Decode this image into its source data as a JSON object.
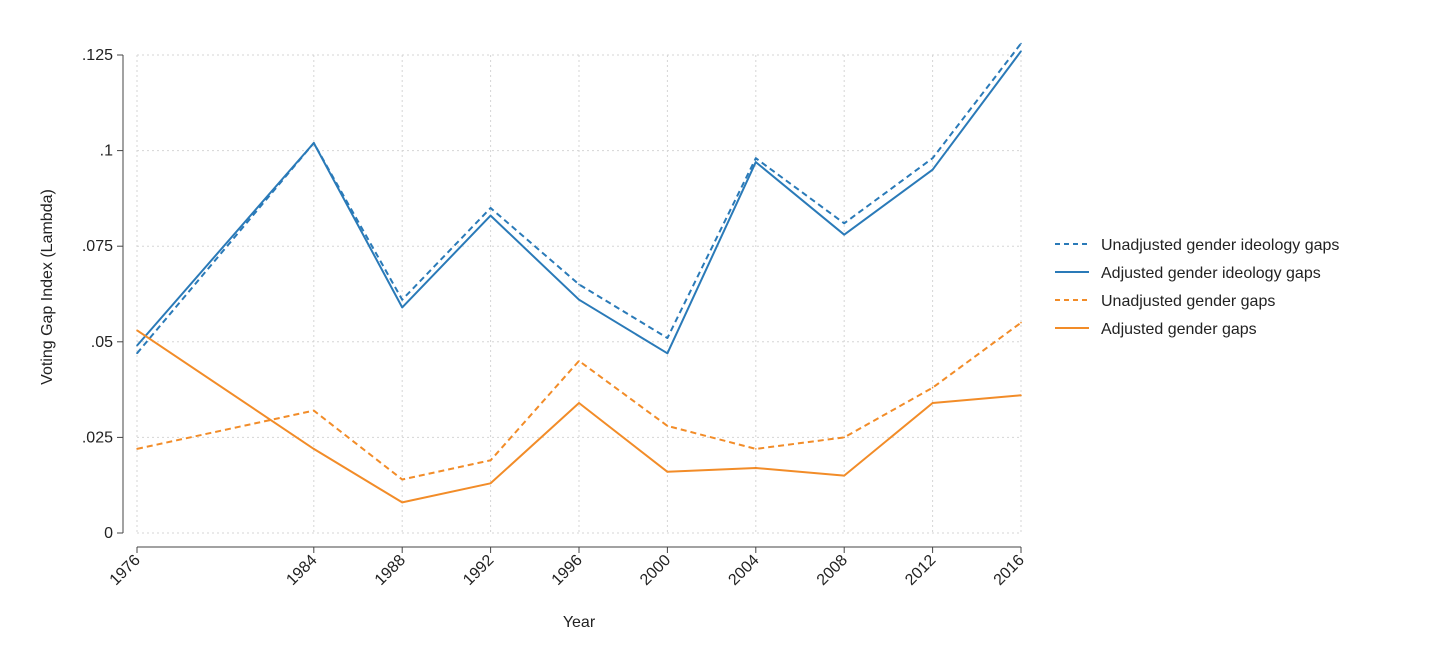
{
  "chart_data": {
    "type": "line",
    "title": "",
    "xlabel": "Year",
    "ylabel": "Voting Gap Index (Lambda)",
    "x": [
      1976,
      1984,
      1988,
      1992,
      1996,
      2000,
      2004,
      2008,
      2012,
      2016
    ],
    "xlim": [
      1976,
      2016
    ],
    "ylim": [
      0,
      0.125
    ],
    "yticks": [
      {
        "value": 0,
        "label": "0"
      },
      {
        "value": 0.025,
        "label": ".025"
      },
      {
        "value": 0.05,
        "label": ".05"
      },
      {
        "value": 0.075,
        "label": ".075"
      },
      {
        "value": 0.1,
        "label": ".1"
      },
      {
        "value": 0.125,
        "label": ".125"
      }
    ],
    "grid": true,
    "legend_position": "right",
    "series": [
      {
        "name": "Unadjusted gender ideology gaps",
        "color": "#2a7ab8",
        "dashed": true,
        "values": [
          0.047,
          0.102,
          0.061,
          0.085,
          0.065,
          0.051,
          0.098,
          0.081,
          0.098,
          0.128
        ]
      },
      {
        "name": "Adjusted gender ideology gaps",
        "color": "#2a7ab8",
        "dashed": false,
        "values": [
          0.049,
          0.102,
          0.059,
          0.083,
          0.061,
          0.047,
          0.097,
          0.078,
          0.095,
          0.126
        ]
      },
      {
        "name": "Unadjusted gender gaps",
        "color": "#f28c28",
        "dashed": true,
        "values": [
          0.022,
          0.032,
          0.014,
          0.019,
          0.045,
          0.028,
          0.022,
          0.025,
          0.038,
          0.055
        ]
      },
      {
        "name": "Adjusted gender gaps",
        "color": "#f28c28",
        "dashed": false,
        "values": [
          0.053,
          0.022,
          0.008,
          0.013,
          0.034,
          0.016,
          0.017,
          0.015,
          0.034,
          0.036
        ]
      }
    ]
  }
}
